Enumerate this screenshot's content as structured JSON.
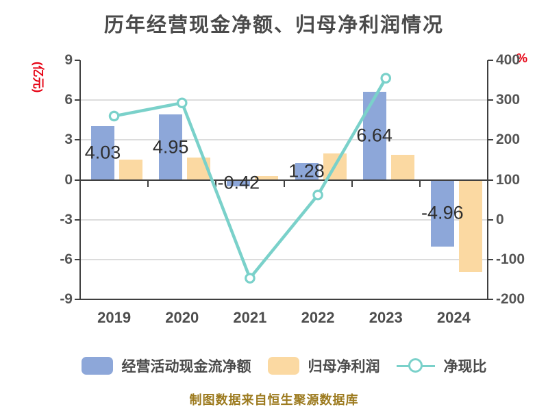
{
  "title": "历年经营现金净额、归母净利润情况",
  "footer": "制图数据来自恒生聚源数据库",
  "axes": {
    "left": {
      "unit_label": "(亿元)",
      "ticks": [
        9,
        6,
        3,
        0,
        -3,
        -6,
        -9
      ],
      "range": [
        -9,
        9
      ]
    },
    "right": {
      "unit_label": "%",
      "ticks": [
        400,
        300,
        200,
        100,
        0,
        -100,
        -200
      ],
      "range": [
        -200,
        400
      ]
    }
  },
  "chart_data": {
    "type": "bar",
    "title": "历年经营现金净额、归母净利润情况",
    "categories": [
      "2019",
      "2020",
      "2021",
      "2022",
      "2023",
      "2024"
    ],
    "series": [
      {
        "name": "经营活动现金流净额",
        "type": "bar",
        "axis": "left",
        "color": "#8da7d9",
        "values": [
          4.03,
          4.95,
          -0.42,
          1.28,
          6.64,
          -4.96
        ],
        "data_labels": [
          "4.03",
          "4.95",
          "-0.42",
          "1.28",
          "6.64",
          "-4.96"
        ]
      },
      {
        "name": "归母净利润",
        "type": "bar",
        "axis": "left",
        "color": "#fbd9a2",
        "values": [
          1.5,
          1.7,
          0.3,
          2.0,
          1.9,
          -6.9
        ]
      },
      {
        "name": "净现比",
        "type": "line",
        "axis": "right",
        "color": "#7ad1ca",
        "marker_fill": "#ffffff",
        "values": [
          260,
          293,
          -147,
          62,
          355,
          null
        ]
      }
    ],
    "left_ylim": [
      -9,
      9
    ],
    "right_ylim": [
      -200,
      400
    ],
    "grid": true,
    "legend_position": "bottom"
  },
  "legend": {
    "items": [
      {
        "label": "经营活动现金流净额",
        "color": "#8da7d9",
        "type": "bar"
      },
      {
        "label": "归母净利润",
        "color": "#fbd9a2",
        "type": "bar"
      },
      {
        "label": "净现比",
        "color": "#7ad1ca",
        "type": "line"
      }
    ]
  },
  "colors": {
    "title_text": "#4a4a4a",
    "axis_text": "#555555",
    "unit_text": "#e60012",
    "bar_label_text": "#2e2e2e",
    "footer_text": "#9c7a1e",
    "gridline": "#dcdcdc",
    "axis_line": "#3f3f3f",
    "background": "#ffffff"
  }
}
